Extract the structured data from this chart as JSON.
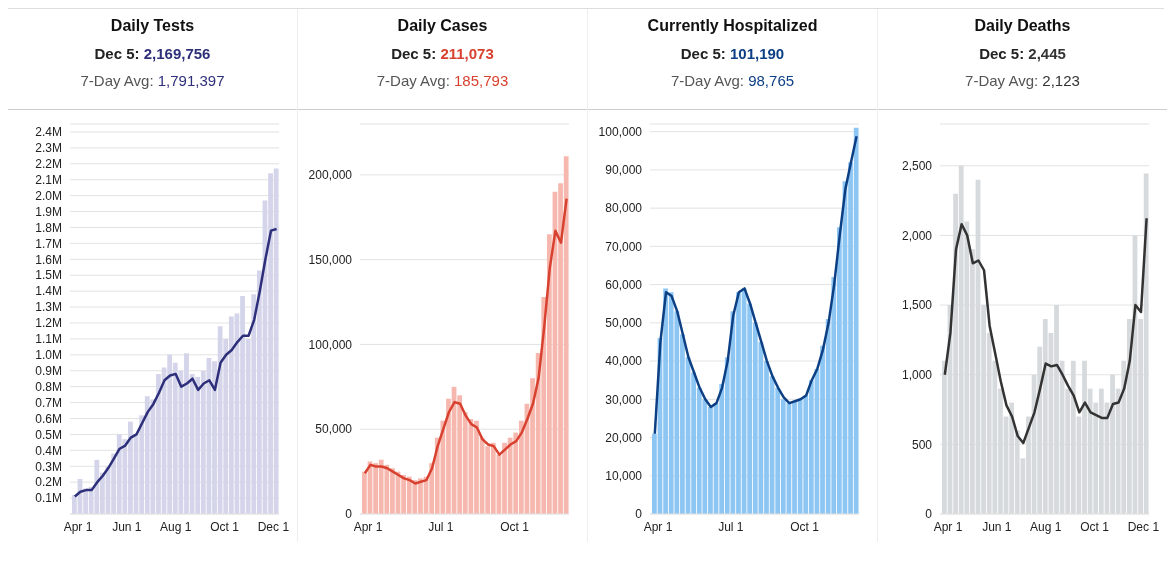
{
  "chart_data": [
    {
      "type": "bar",
      "title": "Daily Tests",
      "subtitle": "Dec 5: 2,169,756",
      "annotations": [
        "7-Day Avg: 1,791,397"
      ],
      "x": [
        "--03-28",
        "--04-04",
        "--04-11",
        "--04-18",
        "--04-25",
        "--05-02",
        "--05-09",
        "--05-16",
        "--05-23",
        "--05-30",
        "--06-06",
        "--06-13",
        "--06-20",
        "--06-27",
        "--07-04",
        "--07-11",
        "--07-18",
        "--07-25",
        "--08-01",
        "--08-08",
        "--08-15",
        "--08-22",
        "--08-29",
        "--09-05",
        "--09-12",
        "--09-19",
        "--09-26",
        "--10-03",
        "--10-10",
        "--10-17",
        "--10-24",
        "--10-31",
        "--11-07",
        "--11-14",
        "--11-21",
        "--11-28",
        "--12-05"
      ],
      "series": [
        {
          "color": "#d4d4ea",
          "values": [
            120000,
            220000,
            160000,
            170000,
            340000,
            260000,
            300000,
            380000,
            500000,
            470000,
            580000,
            500000,
            620000,
            740000,
            720000,
            880000,
            920000,
            1000000,
            950000,
            900000,
            1010000,
            880000,
            860000,
            900000,
            980000,
            960000,
            1180000,
            1100000,
            1240000,
            1260000,
            1370000,
            1100000,
            1380000,
            1530000,
            1970000,
            2140000,
            2170000
          ]
        },
        {
          "type": "line",
          "color": "#2e2f7a",
          "values": [
            110000,
            140000,
            150000,
            150000,
            200000,
            240000,
            290000,
            350000,
            410000,
            430000,
            480000,
            500000,
            570000,
            640000,
            690000,
            760000,
            840000,
            870000,
            880000,
            800000,
            820000,
            850000,
            780000,
            820000,
            840000,
            780000,
            950000,
            1000000,
            1030000,
            1080000,
            1120000,
            1120000,
            1220000,
            1400000,
            1600000,
            1780000,
            1790000
          ]
        }
      ],
      "xlim": [
        "--03-22",
        "--12-08"
      ],
      "xticks": [
        {
          "value": "--04-01",
          "label": "Apr 1"
        },
        {
          "value": "--06-01",
          "label": "Jun 1"
        },
        {
          "value": "--08-01",
          "label": "Aug 1"
        },
        {
          "value": "--10-01",
          "label": "Oct 1"
        },
        {
          "value": "--12-01",
          "label": "Dec 1"
        }
      ],
      "ylim": [
        0,
        2450000
      ],
      "yticks": [
        {
          "value": 100000,
          "label": "0.1M"
        },
        {
          "value": 200000,
          "label": "0.2M"
        },
        {
          "value": 300000,
          "label": "0.3M"
        },
        {
          "value": 400000,
          "label": "0.4M"
        },
        {
          "value": 500000,
          "label": "0.5M"
        },
        {
          "value": 600000,
          "label": "0.6M"
        },
        {
          "value": 700000,
          "label": "0.7M"
        },
        {
          "value": 800000,
          "label": "0.8M"
        },
        {
          "value": 900000,
          "label": "0.9M"
        },
        {
          "value": 1000000,
          "label": "1.0M"
        },
        {
          "value": 1100000,
          "label": "1.1M"
        },
        {
          "value": 1200000,
          "label": "1.2M"
        },
        {
          "value": 1300000,
          "label": "1.3M"
        },
        {
          "value": 1400000,
          "label": "1.4M"
        },
        {
          "value": 1500000,
          "label": "1.5M"
        },
        {
          "value": 1600000,
          "label": "1.6M"
        },
        {
          "value": 1700000,
          "label": "1.7M"
        },
        {
          "value": 1800000,
          "label": "1.8M"
        },
        {
          "value": 1900000,
          "label": "1.9M"
        },
        {
          "value": 2000000,
          "label": "2.0M"
        },
        {
          "value": 2100000,
          "label": "2.1M"
        },
        {
          "value": 2200000,
          "label": "2.2M"
        },
        {
          "value": 2300000,
          "label": "2.3M"
        },
        {
          "value": 2400000,
          "label": "2.4M"
        }
      ],
      "grid": "y",
      "legend": false
    },
    {
      "type": "bar",
      "title": "Daily Cases",
      "subtitle": "Dec 5: 211,073",
      "annotations": [
        "7-Day Avg: 185,793"
      ],
      "x": [
        "--03-28",
        "--04-04",
        "--04-11",
        "--04-18",
        "--04-25",
        "--05-02",
        "--05-09",
        "--05-16",
        "--05-23",
        "--05-30",
        "--06-06",
        "--06-13",
        "--06-20",
        "--06-27",
        "--07-04",
        "--07-11",
        "--07-18",
        "--07-25",
        "--08-01",
        "--08-08",
        "--08-15",
        "--08-22",
        "--08-29",
        "--09-05",
        "--09-12",
        "--09-19",
        "--09-26",
        "--10-03",
        "--10-10",
        "--10-17",
        "--10-24",
        "--10-31",
        "--11-07",
        "--11-14",
        "--11-21",
        "--11-28",
        "--12-05"
      ],
      "series": [
        {
          "color": "#f6b8ae",
          "values": [
            25000,
            31000,
            30000,
            32000,
            29000,
            27000,
            25000,
            23000,
            22000,
            20000,
            21000,
            22000,
            30000,
            45000,
            55000,
            68000,
            75000,
            70000,
            60000,
            56000,
            55000,
            45000,
            40000,
            42000,
            35000,
            42000,
            45000,
            48000,
            55000,
            65000,
            80000,
            95000,
            128000,
            165000,
            190000,
            195000,
            211000
          ]
        },
        {
          "type": "line",
          "color": "#d8412f",
          "values": [
            24000,
            29000,
            28000,
            28000,
            27000,
            25000,
            23000,
            21000,
            20000,
            18000,
            19000,
            20000,
            27000,
            40000,
            50000,
            60000,
            66000,
            65000,
            58000,
            53000,
            51000,
            44000,
            41000,
            40000,
            35000,
            38000,
            41000,
            43000,
            48000,
            56000,
            65000,
            80000,
            110000,
            145000,
            167000,
            160000,
            186000
          ]
        }
      ],
      "xlim": [
        "--03-22",
        "--12-08"
      ],
      "xticks": [
        {
          "value": "--04-01",
          "label": "Apr 1"
        },
        {
          "value": "--07-01",
          "label": "Jul 1"
        },
        {
          "value": "--10-01",
          "label": "Oct 1"
        }
      ],
      "ylim": [
        0,
        230000
      ],
      "yticks": [
        {
          "value": 0,
          "label": "0"
        },
        {
          "value": 50000,
          "label": "50,000"
        },
        {
          "value": 100000,
          "label": "100,000"
        },
        {
          "value": 150000,
          "label": "150,000"
        },
        {
          "value": 200000,
          "label": "200,000"
        }
      ],
      "grid": "y",
      "legend": false
    },
    {
      "type": "bar",
      "title": "Currently Hospitalized",
      "subtitle": "Dec 5: 101,190",
      "annotations": [
        "7-Day Avg: 98,765"
      ],
      "x": [
        "--03-28",
        "--04-04",
        "--04-11",
        "--04-18",
        "--04-25",
        "--05-02",
        "--05-09",
        "--05-16",
        "--05-23",
        "--05-30",
        "--06-06",
        "--06-13",
        "--06-20",
        "--06-27",
        "--07-04",
        "--07-11",
        "--07-18",
        "--07-25",
        "--08-01",
        "--08-08",
        "--08-15",
        "--08-22",
        "--08-29",
        "--09-05",
        "--09-12",
        "--09-19",
        "--09-26",
        "--10-03",
        "--10-10",
        "--10-17",
        "--10-24",
        "--10-31",
        "--11-07",
        "--11-14",
        "--11-21",
        "--11-28",
        "--12-05"
      ],
      "series": [
        {
          "color": "#8ec6f3",
          "values": [
            21000,
            46000,
            59000,
            58000,
            53000,
            47000,
            41000,
            37000,
            33000,
            30000,
            28000,
            29000,
            34000,
            41000,
            53000,
            58000,
            59000,
            55000,
            50000,
            45000,
            40000,
            36000,
            33000,
            30000,
            29000,
            29500,
            30000,
            31000,
            35000,
            38000,
            44000,
            51000,
            62000,
            75000,
            87000,
            92000,
            101000
          ]
        },
        {
          "type": "line",
          "color": "#0d3f84",
          "values": [
            21000,
            45000,
            58000,
            57000,
            53000,
            47000,
            41000,
            37000,
            33000,
            30000,
            28000,
            29000,
            33000,
            40000,
            52000,
            58000,
            59000,
            55000,
            50000,
            45000,
            40000,
            36000,
            33000,
            30500,
            29000,
            29500,
            30000,
            31000,
            35000,
            38000,
            43000,
            50000,
            60000,
            73000,
            85000,
            92000,
            98800
          ]
        }
      ],
      "xlim": [
        "--03-22",
        "--12-08"
      ],
      "xticks": [
        {
          "value": "--04-01",
          "label": "Apr 1"
        },
        {
          "value": "--07-01",
          "label": "Jul 1"
        },
        {
          "value": "--10-01",
          "label": "Oct 1"
        }
      ],
      "ylim": [
        0,
        102000
      ],
      "yticks": [
        {
          "value": 0,
          "label": "0"
        },
        {
          "value": 10000,
          "label": "10,000"
        },
        {
          "value": 20000,
          "label": "20,000"
        },
        {
          "value": 30000,
          "label": "30,000"
        },
        {
          "value": 40000,
          "label": "40,000"
        },
        {
          "value": 50000,
          "label": "50,000"
        },
        {
          "value": 60000,
          "label": "60,000"
        },
        {
          "value": 70000,
          "label": "70,000"
        },
        {
          "value": 80000,
          "label": "80,000"
        },
        {
          "value": 90000,
          "label": "90,000"
        },
        {
          "value": 100000,
          "label": "100,000"
        }
      ],
      "grid": "y",
      "legend": false
    },
    {
      "type": "bar",
      "title": "Daily Deaths",
      "subtitle": "Dec 5: 2,445",
      "annotations": [
        "7-Day Avg: 2,123"
      ],
      "x": [
        "--03-28",
        "--04-04",
        "--04-11",
        "--04-18",
        "--04-25",
        "--05-02",
        "--05-09",
        "--05-16",
        "--05-23",
        "--05-30",
        "--06-06",
        "--06-13",
        "--06-20",
        "--06-27",
        "--07-04",
        "--07-11",
        "--07-18",
        "--07-25",
        "--08-01",
        "--08-08",
        "--08-15",
        "--08-22",
        "--08-29",
        "--09-05",
        "--09-12",
        "--09-19",
        "--09-26",
        "--10-03",
        "--10-10",
        "--10-17",
        "--10-24",
        "--10-31",
        "--11-07",
        "--11-14",
        "--11-21",
        "--11-28",
        "--12-05"
      ],
      "series": [
        {
          "color": "#d6dadc",
          "values": [
            1100,
            1500,
            2300,
            2500,
            2100,
            1900,
            2400,
            1500,
            1300,
            1100,
            900,
            700,
            800,
            600,
            400,
            700,
            1000,
            1200,
            1400,
            1300,
            1500,
            1100,
            900,
            1100,
            700,
            1100,
            900,
            800,
            900,
            800,
            1000,
            900,
            1100,
            1400,
            2000,
            1400,
            2445
          ]
        },
        {
          "type": "line",
          "color": "#333333",
          "values": [
            1000,
            1300,
            1900,
            2080,
            2000,
            1800,
            1820,
            1750,
            1350,
            1150,
            950,
            780,
            700,
            560,
            510,
            620,
            730,
            900,
            1080,
            1060,
            1070,
            1000,
            920,
            850,
            730,
            800,
            730,
            710,
            690,
            690,
            790,
            800,
            900,
            1100,
            1500,
            1450,
            2123
          ]
        }
      ],
      "xlim": [
        "--03-22",
        "--12-08"
      ],
      "xticks": [
        {
          "value": "--04-01",
          "label": "Apr 1"
        },
        {
          "value": "--06-01",
          "label": "Jun 1"
        },
        {
          "value": "--08-01",
          "label": "Aug 1"
        },
        {
          "value": "--10-01",
          "label": "Oct 1"
        },
        {
          "value": "--12-01",
          "label": "Dec 1"
        }
      ],
      "ylim": [
        0,
        2800
      ],
      "yticks": [
        {
          "value": 0,
          "label": "0"
        },
        {
          "value": 500,
          "label": "500"
        },
        {
          "value": 1000,
          "label": "1,000"
        },
        {
          "value": 1500,
          "label": "1,500"
        },
        {
          "value": 2000,
          "label": "2,000"
        },
        {
          "value": 2500,
          "label": "2,500"
        }
      ],
      "grid": "y",
      "legend": false
    }
  ]
}
